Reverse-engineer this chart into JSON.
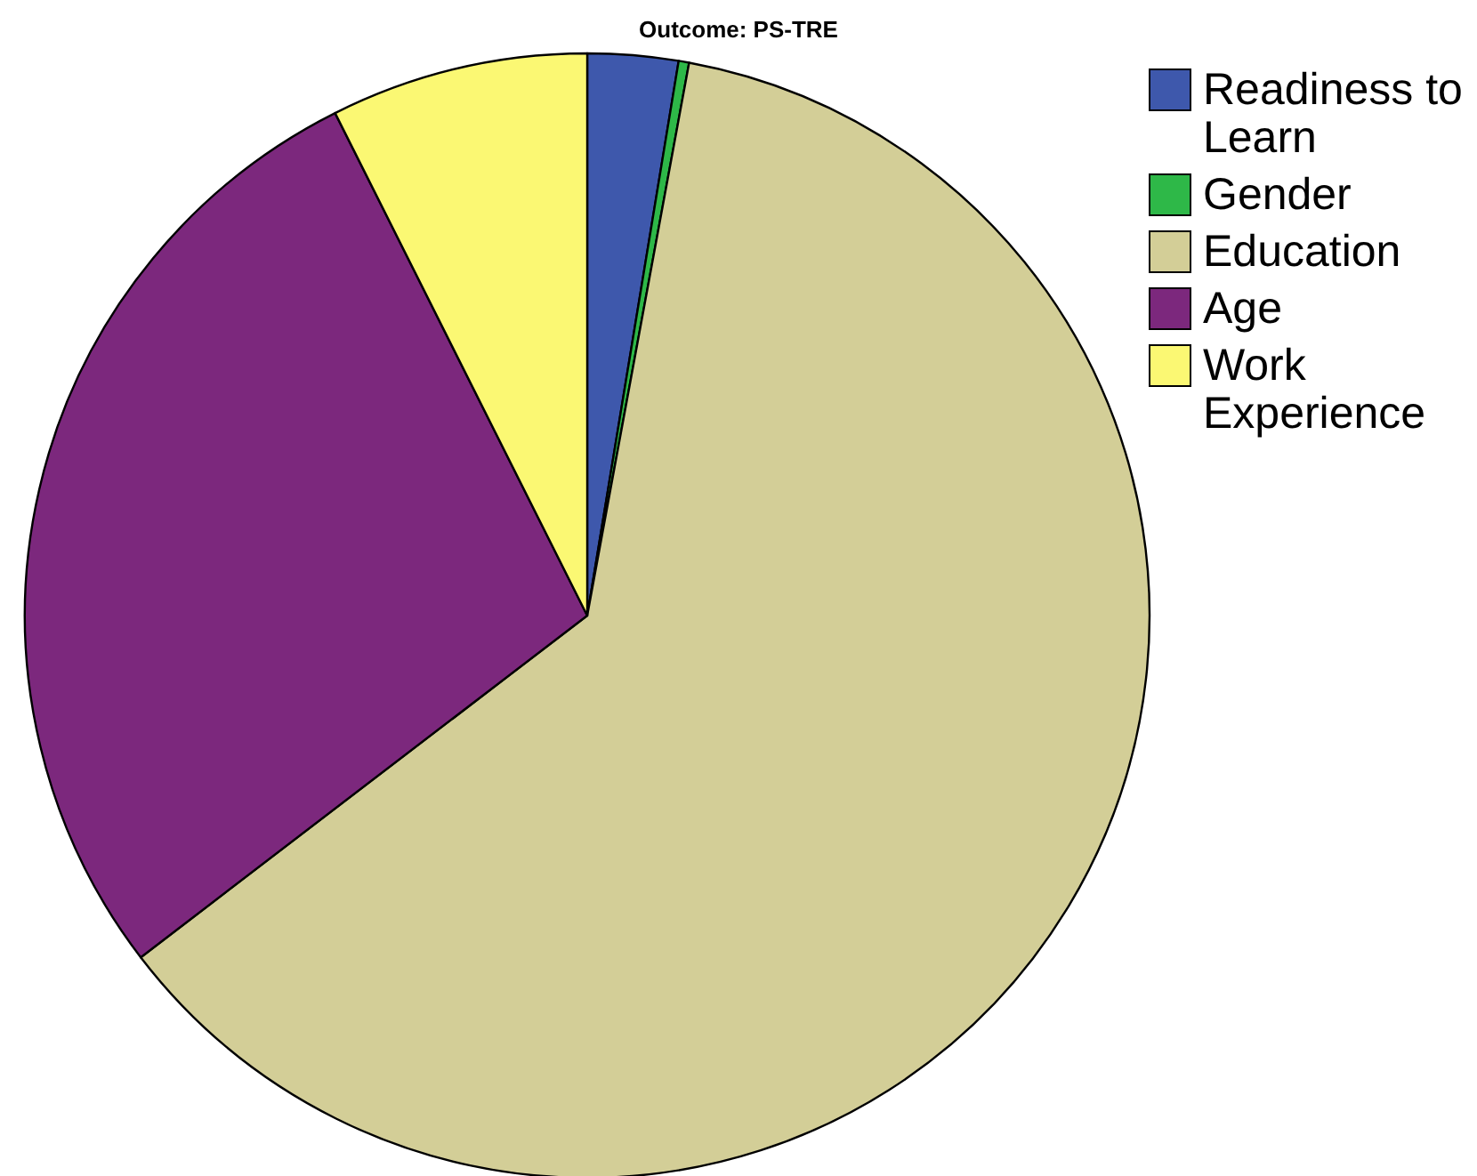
{
  "chart_data": {
    "type": "pie",
    "title": "Outcome: PS-TRE",
    "categories": [
      "Readiness to Learn",
      "Gender",
      "Education",
      "Age",
      "Work Experience"
    ],
    "values": [
      2.6,
      0.3,
      61.7,
      28.0,
      7.4
    ],
    "colors": [
      "#3e58ac",
      "#2eb848",
      "#d3ce97",
      "#7c287d",
      "#fbf873"
    ],
    "legend": "top right"
  }
}
